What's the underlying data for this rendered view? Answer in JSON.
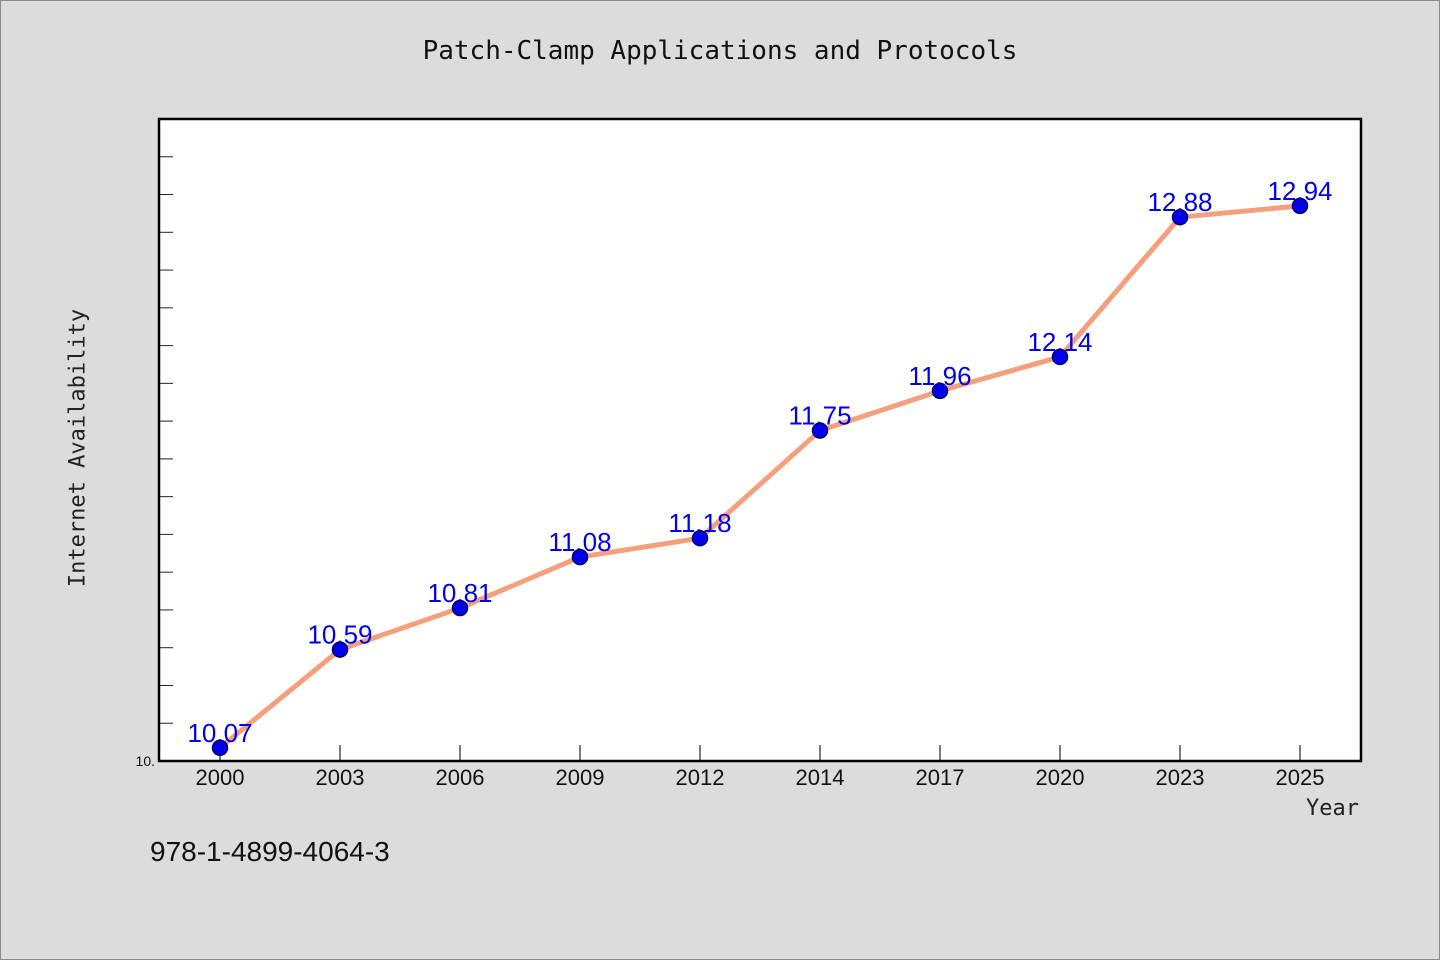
{
  "chart_data": {
    "type": "line",
    "title": "Patch-Clamp Applications and Protocols",
    "xlabel": "Year",
    "ylabel": "Internet Availability",
    "categories": [
      "2000",
      "2003",
      "2006",
      "2009",
      "2012",
      "2014",
      "2017",
      "2020",
      "2023",
      "2025"
    ],
    "series": [
      {
        "values": [
          10.07,
          10.59,
          10.81,
          11.08,
          11.18,
          11.75,
          11.96,
          12.14,
          12.88,
          12.94
        ],
        "labels": [
          "10.07",
          "10.59",
          "10.81",
          "11.08",
          "11.18",
          "11.75",
          "11.96",
          "12.14",
          "12.88",
          "12.94"
        ]
      }
    ],
    "ylim": [
      10.0,
      13.4
    ],
    "y_tick_labels": [
      "10."
    ],
    "grid": false,
    "legend": "none",
    "colors": {
      "line": "#f4a07c",
      "marker_fill": "#0000ee",
      "marker_edge": "#000066",
      "data_label": "#0000ee",
      "plot_background": "#ffffff",
      "page_background": "#dcdcdc"
    }
  },
  "footer": {
    "isbn": "978-1-4899-4064-3"
  }
}
